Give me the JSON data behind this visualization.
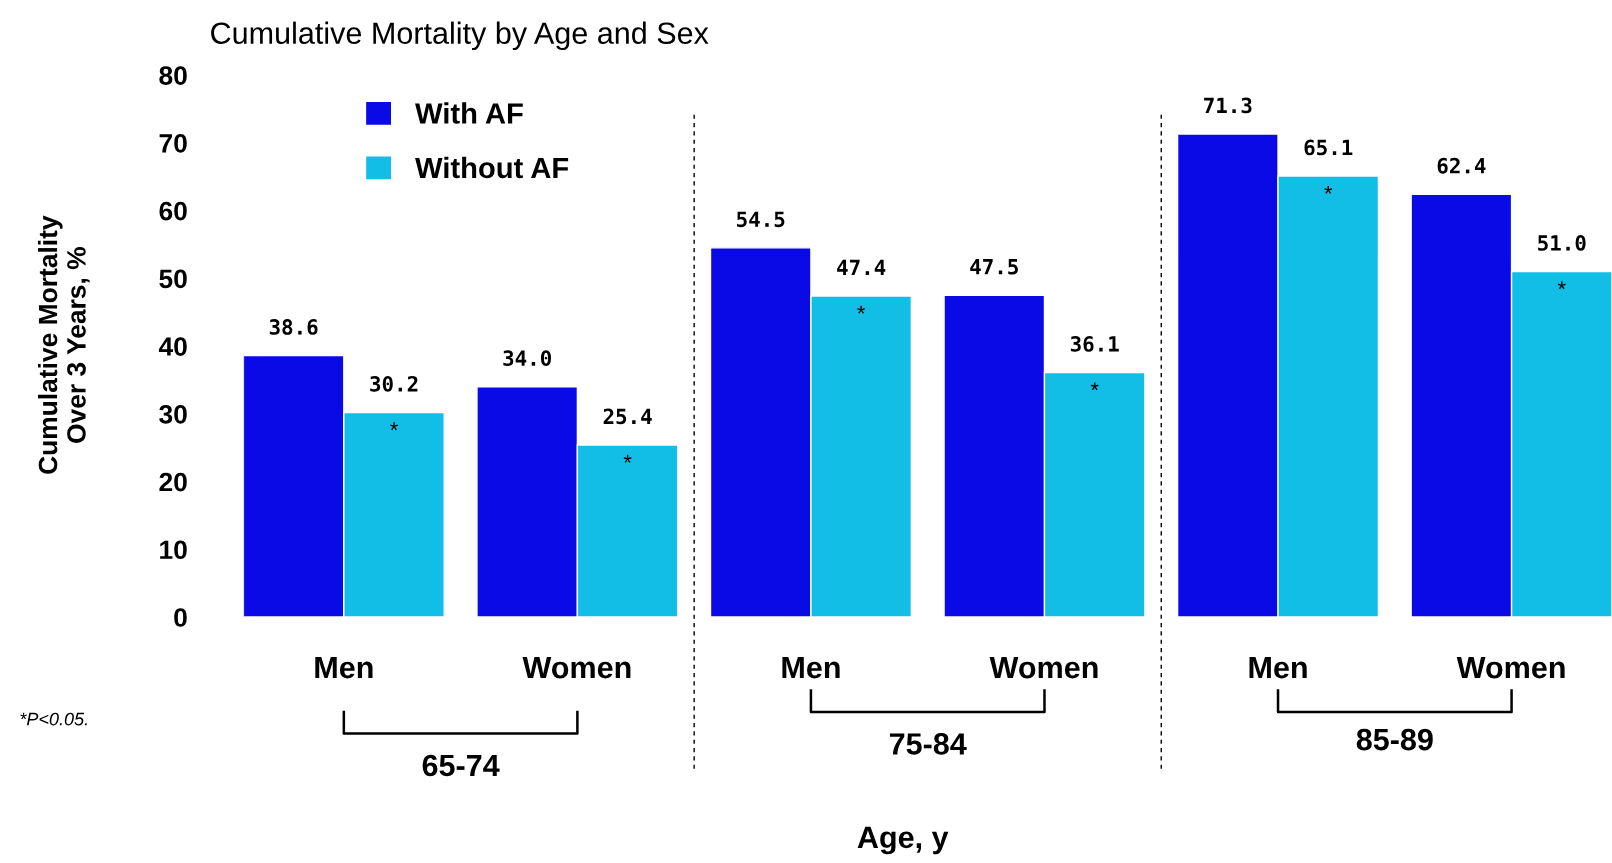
{
  "chart_data": {
    "type": "bar",
    "title": "Cumulative Mortality by Age and Sex",
    "xlabel": "Age, y",
    "ylabel": "Cumulative Mortality\nOver 3 Years, %",
    "categories": [
      "Men",
      "Women",
      "Men",
      "Women",
      "Men",
      "Women"
    ],
    "series": [
      {
        "name": "With AF",
        "color": "#0a0ae6",
        "values": [
          38.6,
          34.0,
          54.5,
          47.5,
          71.3,
          62.4
        ],
        "value_labels": [
          "38.6",
          "34.0",
          "54.5",
          "47.5",
          "71.3",
          "62.4"
        ]
      },
      {
        "name": "Without AF",
        "color": "#12bde6",
        "values": [
          30.2,
          25.4,
          47.4,
          36.1,
          65.1,
          51.0
        ],
        "value_labels": [
          "30.2",
          "25.4",
          "47.4",
          "36.1",
          "65.1",
          "51.0"
        ]
      }
    ],
    "ylim": [
      0,
      80
    ],
    "yticks": [
      0,
      10,
      20,
      30,
      40,
      50,
      60,
      70,
      80
    ],
    "legend": "top left",
    "grid": false,
    "annotations": [
      "65-74",
      "75-84",
      "85-89",
      "*P<0.05.",
      "*",
      "*",
      "*",
      "*",
      "*",
      "*"
    ]
  }
}
